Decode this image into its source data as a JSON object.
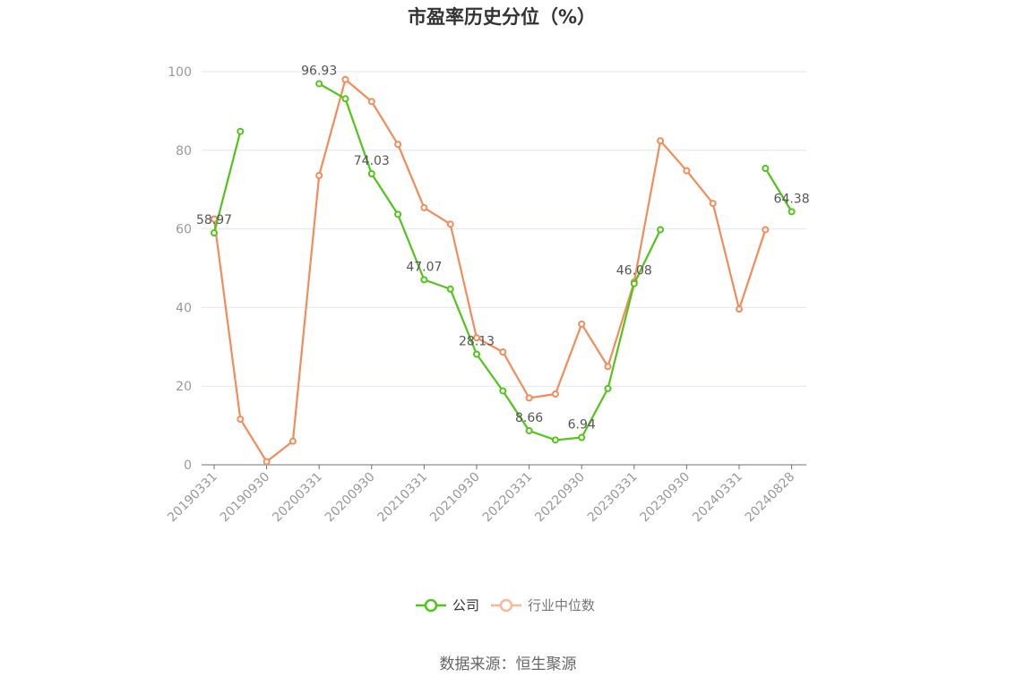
{
  "chart_data": {
    "type": "line",
    "title": "市盈率历史分位（%）",
    "source": "数据来源：恒生聚源",
    "ylim": [
      0,
      100
    ],
    "yticks": [
      0,
      20,
      40,
      60,
      80,
      100
    ],
    "grid": true,
    "legend_position": "bottom",
    "x": [
      "20190331",
      "20190630",
      "20190930",
      "20191231",
      "20200331",
      "20200630",
      "20200930",
      "20201231",
      "20210331",
      "20210630",
      "20210930",
      "20211231",
      "20220331",
      "20220630",
      "20220930",
      "20221231",
      "20230331",
      "20230630",
      "20230930",
      "20231231",
      "20240331",
      "20240630",
      "20240828"
    ],
    "xtick_labels": [
      "20190331",
      "20190930",
      "20200331",
      "20200930",
      "20210331",
      "20210930",
      "20220331",
      "20220930",
      "20230331",
      "20230930",
      "20240331",
      "20240828"
    ],
    "series": [
      {
        "name": "公司",
        "color": "#52c41a",
        "values": [
          58.97,
          84.8,
          null,
          null,
          96.93,
          93.1,
          74.03,
          63.7,
          47.07,
          44.7,
          28.13,
          18.8,
          8.66,
          6.3,
          6.94,
          19.4,
          46.08,
          59.8,
          null,
          null,
          null,
          75.4,
          64.38
        ]
      },
      {
        "name": "行业中位数",
        "color": "#f28c5a",
        "values": [
          62.5,
          11.6,
          0.8,
          6.0,
          73.6,
          98.0,
          92.4,
          81.5,
          65.4,
          61.2,
          32.3,
          28.7,
          17.0,
          18.0,
          35.8,
          25.0,
          46.5,
          82.4,
          74.8,
          66.5,
          39.6,
          59.8,
          null
        ]
      }
    ],
    "data_labels": [
      {
        "series": "公司",
        "index": 0,
        "text": "58.97"
      },
      {
        "series": "公司",
        "index": 4,
        "text": "96.93"
      },
      {
        "series": "公司",
        "index": 6,
        "text": "74.03"
      },
      {
        "series": "公司",
        "index": 8,
        "text": "47.07"
      },
      {
        "series": "公司",
        "index": 10,
        "text": "28.13"
      },
      {
        "series": "公司",
        "index": 12,
        "text": "8.66"
      },
      {
        "series": "公司",
        "index": 14,
        "text": "6.94"
      },
      {
        "series": "公司",
        "index": 16,
        "text": "46.08"
      },
      {
        "series": "公司",
        "index": 22,
        "text": "64.38"
      }
    ]
  }
}
